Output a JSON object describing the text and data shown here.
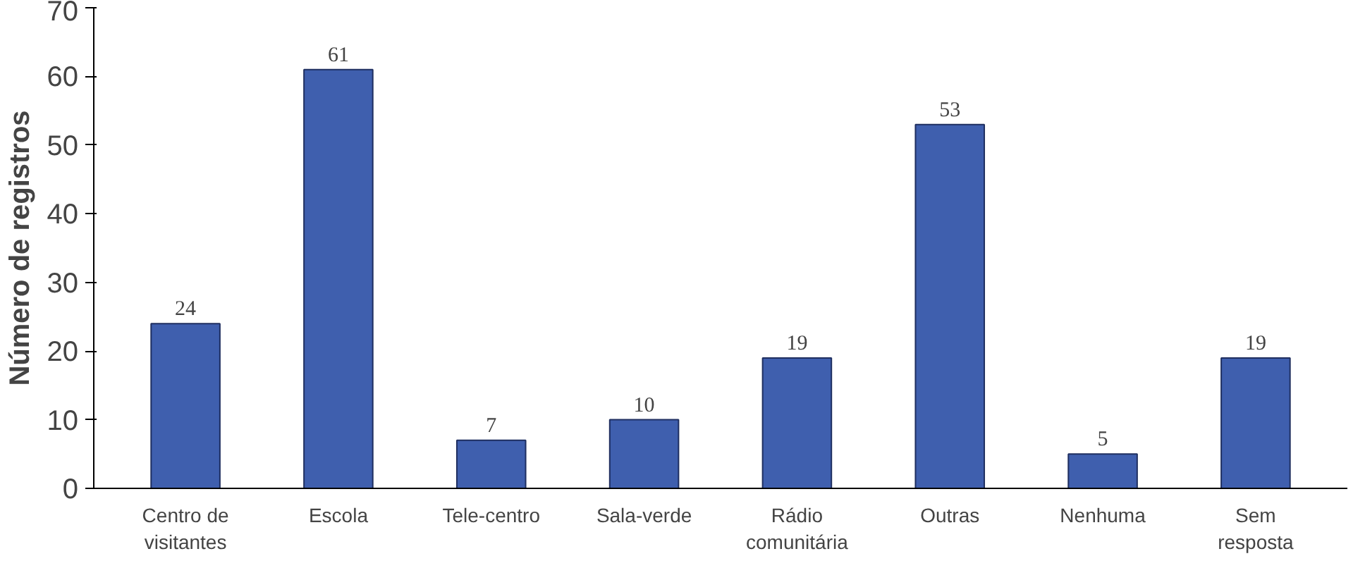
{
  "chart_data": {
    "type": "bar",
    "ylabel": "Número de registros",
    "categories": [
      "Centro de visitantes",
      "Escola",
      "Tele-centro",
      "Sala-verde",
      "Rádio comunitária",
      "Outras",
      "Nenhuma",
      "Sem resposta"
    ],
    "values": [
      24,
      61,
      7,
      10,
      19,
      53,
      5,
      19
    ],
    "color": "#3f5fae",
    "ylim": [
      0,
      70
    ],
    "yticks": [
      0,
      10,
      20,
      30,
      40,
      50,
      60,
      70
    ],
    "data_labels": true,
    "grid": false
  }
}
